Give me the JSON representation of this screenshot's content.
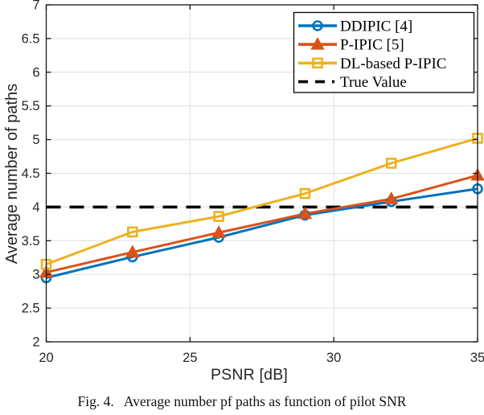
{
  "figure": {
    "caption": "Fig. 4.   Average number pf paths as function of pilot SNR"
  },
  "chart_data": {
    "type": "line",
    "title": "",
    "xlabel": "PSNR [dB]",
    "ylabel": "Average number of paths",
    "xlim": [
      20,
      35
    ],
    "ylim": [
      2,
      7
    ],
    "xticks": [
      20,
      25,
      30,
      35
    ],
    "yticks": [
      2,
      2.5,
      3,
      3.5,
      4,
      4.5,
      5,
      5.5,
      6,
      6.5,
      7
    ],
    "grid": true,
    "legend_position": "top-right-inside",
    "x": [
      20,
      23,
      26,
      29,
      32,
      35
    ],
    "series": [
      {
        "name": "DDIPIC [4]",
        "color": "#0072BD",
        "marker": "circle",
        "marker_fill": "none",
        "values": [
          2.95,
          3.26,
          3.55,
          3.88,
          4.08,
          4.27
        ]
      },
      {
        "name": "P-IPIC [5]",
        "color": "#D95319",
        "marker": "triangle",
        "marker_fill": "solid",
        "values": [
          3.03,
          3.33,
          3.62,
          3.9,
          4.12,
          4.47
        ]
      },
      {
        "name": "DL-based P-IPIC",
        "color": "#EDB120",
        "marker": "square",
        "marker_fill": "none",
        "values": [
          3.15,
          3.63,
          3.86,
          4.2,
          4.65,
          5.02
        ]
      }
    ],
    "reference_line": {
      "name": "True Value",
      "value": 4,
      "color": "#000000",
      "style": "dashed"
    },
    "axis_color": "#151515",
    "tick_label_color": "#262626",
    "grid_color": "#dedede"
  }
}
